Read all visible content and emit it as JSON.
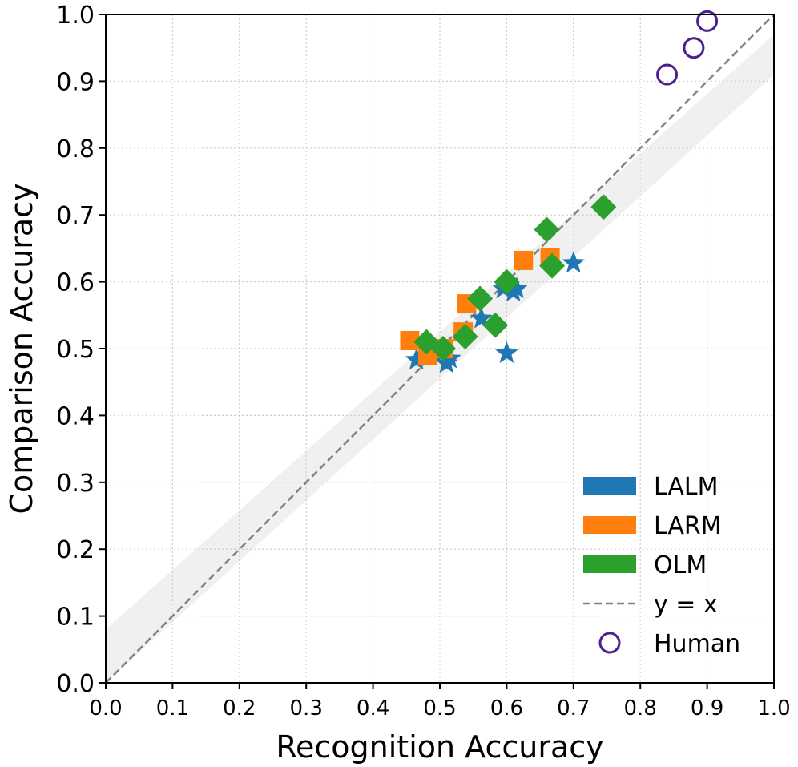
{
  "chart_data": {
    "type": "scatter",
    "xlabel": "Recognition Accuracy",
    "ylabel": "Comparison Accuracy",
    "xlim": [
      0.0,
      1.0
    ],
    "ylim": [
      0.0,
      1.0
    ],
    "xticks": [
      "0.0",
      "0.1",
      "0.2",
      "0.3",
      "0.4",
      "0.5",
      "0.6",
      "0.7",
      "0.8",
      "0.9",
      "1.0"
    ],
    "yticks": [
      "0.0",
      "0.1",
      "0.2",
      "0.3",
      "0.4",
      "0.5",
      "0.6",
      "0.7",
      "0.8",
      "0.9",
      "1.0"
    ],
    "grid": true,
    "legend_position": "lower-right",
    "band": {
      "lower": [
        [
          0.0,
          0.0
        ],
        [
          1.0,
          0.91
        ]
      ],
      "upper": [
        [
          0.0,
          0.08
        ],
        [
          1.0,
          0.97
        ]
      ]
    },
    "reference_line": {
      "name": "y = x",
      "color": "#808080",
      "style": "dashed"
    },
    "series": [
      {
        "name": "LALM",
        "marker": "star",
        "color": "#1f77b4",
        "points": [
          [
            0.465,
            0.483
          ],
          [
            0.48,
            0.49
          ],
          [
            0.505,
            0.495
          ],
          [
            0.51,
            0.478
          ],
          [
            0.515,
            0.485
          ],
          [
            0.562,
            0.545
          ],
          [
            0.595,
            0.59
          ],
          [
            0.61,
            0.585
          ],
          [
            0.615,
            0.59
          ],
          [
            0.6,
            0.493
          ],
          [
            0.7,
            0.628
          ]
        ]
      },
      {
        "name": "LARM",
        "marker": "square",
        "color": "#ff7f0e",
        "points": [
          [
            0.455,
            0.512
          ],
          [
            0.482,
            0.49
          ],
          [
            0.505,
            0.5
          ],
          [
            0.535,
            0.525
          ],
          [
            0.54,
            0.567
          ],
          [
            0.625,
            0.632
          ],
          [
            0.665,
            0.636
          ]
        ]
      },
      {
        "name": "OLM",
        "marker": "diamond",
        "color": "#2ca02c",
        "points": [
          [
            0.48,
            0.51
          ],
          [
            0.505,
            0.5
          ],
          [
            0.538,
            0.518
          ],
          [
            0.56,
            0.575
          ],
          [
            0.583,
            0.535
          ],
          [
            0.6,
            0.6
          ],
          [
            0.66,
            0.678
          ],
          [
            0.668,
            0.624
          ],
          [
            0.745,
            0.712
          ]
        ]
      },
      {
        "name": "Human",
        "marker": "circle-open",
        "color": "#4b1f8f",
        "points": [
          [
            0.84,
            0.91
          ],
          [
            0.88,
            0.95
          ],
          [
            0.9,
            0.99
          ]
        ]
      }
    ],
    "legend": [
      {
        "label": "LALM",
        "kind": "patch",
        "color": "#1f77b4"
      },
      {
        "label": "LARM",
        "kind": "patch",
        "color": "#ff7f0e"
      },
      {
        "label": "OLM",
        "kind": "patch",
        "color": "#2ca02c"
      },
      {
        "label": "y = x",
        "kind": "dashed-line",
        "color": "#808080"
      },
      {
        "label": "Human",
        "kind": "open-circle",
        "color": "#4b1f8f"
      }
    ]
  }
}
